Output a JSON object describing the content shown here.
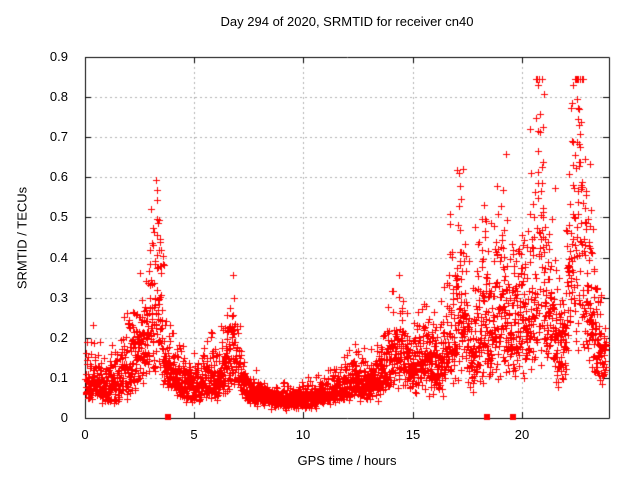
{
  "page": {
    "background": "#ffffff"
  },
  "chart": {
    "title": "Day 294 of 2020, SRMTID for receiver cn40",
    "x_label": "GPS time / hours",
    "y_label": "SRMTID / TECUs"
  },
  "chart_data": {
    "type": "scatter",
    "title": "Day 294 of 2020, SRMTID for receiver cn40",
    "xlabel": "GPS time / hours",
    "ylabel": "SRMTID / TECUs",
    "xlim": [
      0,
      24
    ],
    "ylim": [
      0,
      0.9
    ],
    "xticks": [
      0,
      5,
      10,
      15,
      20
    ],
    "yticks": [
      0,
      0.1,
      0.2,
      0.3,
      0.4,
      0.5,
      0.6,
      0.7,
      0.8,
      0.9
    ],
    "grid": true,
    "grid_color": "#b0b0b0",
    "legend": "none",
    "marker": "plus",
    "marker_color": "#ff0000",
    "marker_size_px": 7,
    "border_color": "#000000",
    "point_interval_hours": 0.006944,
    "seed": 1234,
    "series_name": "SRMTID",
    "envelope_hour_center_sigma": [
      [
        0.0,
        0.085,
        0.35
      ],
      [
        0.4,
        0.095,
        0.35
      ],
      [
        0.9,
        0.08,
        0.35
      ],
      [
        1.4,
        0.085,
        0.35
      ],
      [
        1.9,
        0.115,
        0.35
      ],
      [
        2.4,
        0.15,
        0.35
      ],
      [
        2.8,
        0.2,
        0.38
      ],
      [
        3.1,
        0.26,
        0.4
      ],
      [
        3.35,
        0.29,
        0.42
      ],
      [
        3.55,
        0.2,
        0.38
      ],
      [
        3.8,
        0.125,
        0.35
      ],
      [
        4.2,
        0.1,
        0.33
      ],
      [
        4.7,
        0.085,
        0.32
      ],
      [
        5.2,
        0.08,
        0.32
      ],
      [
        5.7,
        0.105,
        0.33
      ],
      [
        6.1,
        0.09,
        0.32
      ],
      [
        6.5,
        0.13,
        0.33
      ],
      [
        6.8,
        0.165,
        0.35
      ],
      [
        7.1,
        0.115,
        0.33
      ],
      [
        7.45,
        0.068,
        0.3
      ],
      [
        7.9,
        0.055,
        0.28
      ],
      [
        8.5,
        0.048,
        0.28
      ],
      [
        9.3,
        0.044,
        0.28
      ],
      [
        10.1,
        0.05,
        0.28
      ],
      [
        10.8,
        0.058,
        0.29
      ],
      [
        11.5,
        0.068,
        0.3
      ],
      [
        12.0,
        0.078,
        0.31
      ],
      [
        12.4,
        0.1,
        0.33
      ],
      [
        12.8,
        0.085,
        0.31
      ],
      [
        13.3,
        0.095,
        0.32
      ],
      [
        13.8,
        0.125,
        0.33
      ],
      [
        14.3,
        0.16,
        0.34
      ],
      [
        14.7,
        0.145,
        0.33
      ],
      [
        15.1,
        0.125,
        0.33
      ],
      [
        15.5,
        0.15,
        0.34
      ],
      [
        15.9,
        0.13,
        0.34
      ],
      [
        16.3,
        0.125,
        0.36
      ],
      [
        16.7,
        0.2,
        0.4
      ],
      [
        17.0,
        0.25,
        0.42
      ],
      [
        17.2,
        0.32,
        0.44
      ],
      [
        17.45,
        0.2,
        0.38
      ],
      [
        17.75,
        0.15,
        0.36
      ],
      [
        18.1,
        0.22,
        0.38
      ],
      [
        18.35,
        0.26,
        0.38
      ],
      [
        18.6,
        0.23,
        0.38
      ],
      [
        18.9,
        0.26,
        0.38
      ],
      [
        19.2,
        0.28,
        0.38
      ],
      [
        19.5,
        0.22,
        0.36
      ],
      [
        19.85,
        0.23,
        0.36
      ],
      [
        20.2,
        0.26,
        0.37
      ],
      [
        20.55,
        0.29,
        0.4
      ],
      [
        20.9,
        0.42,
        0.42
      ],
      [
        21.1,
        0.31,
        0.4
      ],
      [
        21.4,
        0.23,
        0.36
      ],
      [
        21.7,
        0.185,
        0.34
      ],
      [
        22.0,
        0.21,
        0.36
      ],
      [
        22.3,
        0.43,
        0.42
      ],
      [
        22.6,
        0.49,
        0.42
      ],
      [
        22.9,
        0.32,
        0.4
      ],
      [
        23.15,
        0.28,
        0.4
      ],
      [
        23.4,
        0.21,
        0.38
      ],
      [
        23.65,
        0.16,
        0.32
      ],
      [
        23.87,
        0.15,
        0.3
      ]
    ],
    "peak_outliers_hour_value": [
      [
        3.3,
        0.455
      ],
      [
        3.36,
        0.487
      ],
      [
        3.44,
        0.44
      ],
      [
        6.78,
        0.258
      ],
      [
        14.5,
        0.268
      ],
      [
        15.52,
        0.285
      ],
      [
        16.72,
        0.41
      ],
      [
        17.18,
        0.578
      ],
      [
        17.22,
        0.545
      ],
      [
        18.33,
        0.452
      ],
      [
        19.17,
        0.468
      ],
      [
        20.55,
        0.452
      ],
      [
        20.97,
        0.725
      ],
      [
        21.0,
        0.808
      ],
      [
        22.52,
        0.795
      ],
      [
        22.56,
        0.772
      ],
      [
        22.6,
        0.745
      ],
      [
        22.63,
        0.73
      ],
      [
        22.68,
        0.708
      ],
      [
        22.95,
        0.565
      ]
    ],
    "baseline_square_markers_hours": [
      3.78,
      18.42,
      19.62
    ],
    "value_clamp": [
      0.015,
      0.845
    ],
    "data_hour_range": [
      0.02,
      23.87
    ]
  }
}
